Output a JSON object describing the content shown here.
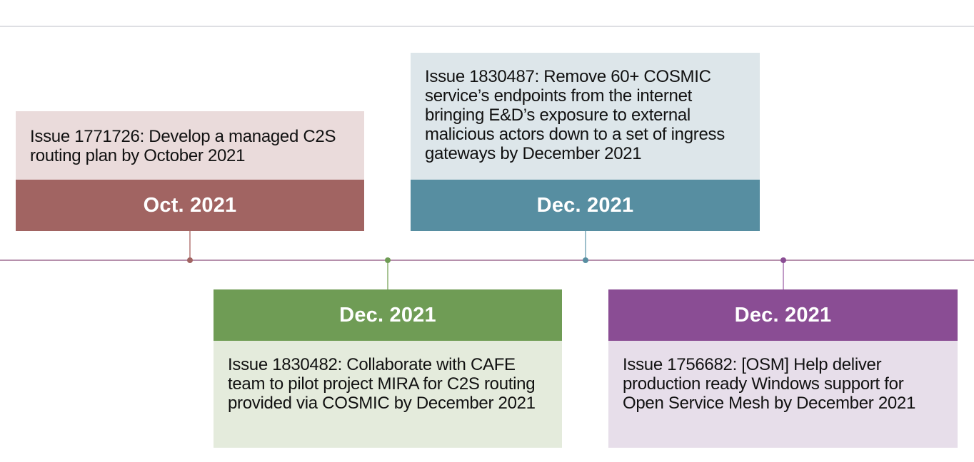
{
  "milestones": [
    {
      "date": "Oct. 2021",
      "text": "Issue 1771726: Develop a managed C2S routing plan by October 2021",
      "header_color": "#a16462",
      "body_color": "#eadbdb",
      "position": "above"
    },
    {
      "date": "Dec. 2021",
      "text": "Issue 1830482: Collaborate with CAFE team to pilot project MIRA for C2S routing provided via COSMIC by December 2021",
      "header_color": "#6f9c55",
      "body_color": "#e4ebdc",
      "position": "below"
    },
    {
      "date": "Dec. 2021",
      "text": "Issue 1830487: Remove 60+ COSMIC service’s endpoints from the internet bringing E&D’s exposure to external malicious actors down to a set of ingress gateways by December 2021",
      "header_color": "#578ea1",
      "body_color": "#dde6ea",
      "position": "above"
    },
    {
      "date": "Dec. 2021",
      "text": "Issue 1756682: [OSM] Help deliver production ready Windows support for Open Service Mesh by December 2021",
      "header_color": "#8a4d94",
      "body_color": "#e7deea",
      "position": "below"
    }
  ],
  "axis_color": "#b690ac"
}
